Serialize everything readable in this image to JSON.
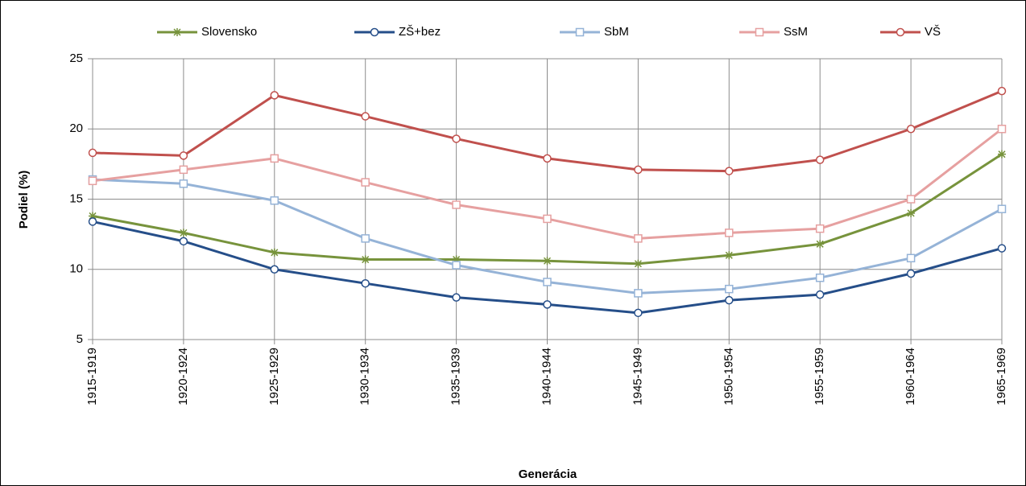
{
  "chart_data": {
    "type": "line",
    "x_label": "Generácia",
    "y_label": "Podiel (%)",
    "categories": [
      "1915-1919",
      "1920-1924",
      "1925-1929",
      "1930-1934",
      "1935-1939",
      "1940-1944",
      "1945-1949",
      "1950-1954",
      "1955-1959",
      "1960-1964",
      "1965-1969"
    ],
    "series": [
      {
        "name": "Slovensko",
        "color": "#77933c",
        "marker": "asterisk",
        "values": [
          13.8,
          12.6,
          11.2,
          10.7,
          10.7,
          10.6,
          10.4,
          11.0,
          11.8,
          14.0,
          18.2
        ]
      },
      {
        "name": "ZŠ+bez",
        "color": "#254e89",
        "marker": "circle",
        "values": [
          13.4,
          12.0,
          10.0,
          9.0,
          8.0,
          7.5,
          6.9,
          7.8,
          8.2,
          9.7,
          11.5
        ]
      },
      {
        "name": "SbM",
        "color": "#95b3d7",
        "marker": "square",
        "values": [
          16.4,
          16.1,
          14.9,
          12.2,
          10.3,
          9.1,
          8.3,
          8.6,
          9.4,
          10.8,
          14.3
        ]
      },
      {
        "name": "SsM",
        "color": "#e6a0a0",
        "marker": "square",
        "values": [
          16.3,
          17.1,
          17.9,
          16.2,
          14.6,
          13.6,
          12.2,
          12.6,
          12.9,
          15.0,
          20.0
        ]
      },
      {
        "name": "VŠ",
        "color": "#c0504d",
        "marker": "circle",
        "values": [
          18.3,
          18.1,
          22.4,
          20.9,
          19.3,
          17.9,
          17.1,
          17.0,
          17.8,
          20.0,
          22.7
        ]
      }
    ],
    "ylim": [
      5,
      25
    ],
    "yticks": [
      5,
      10,
      15,
      20,
      25
    ],
    "grid": true,
    "legend": "top"
  }
}
